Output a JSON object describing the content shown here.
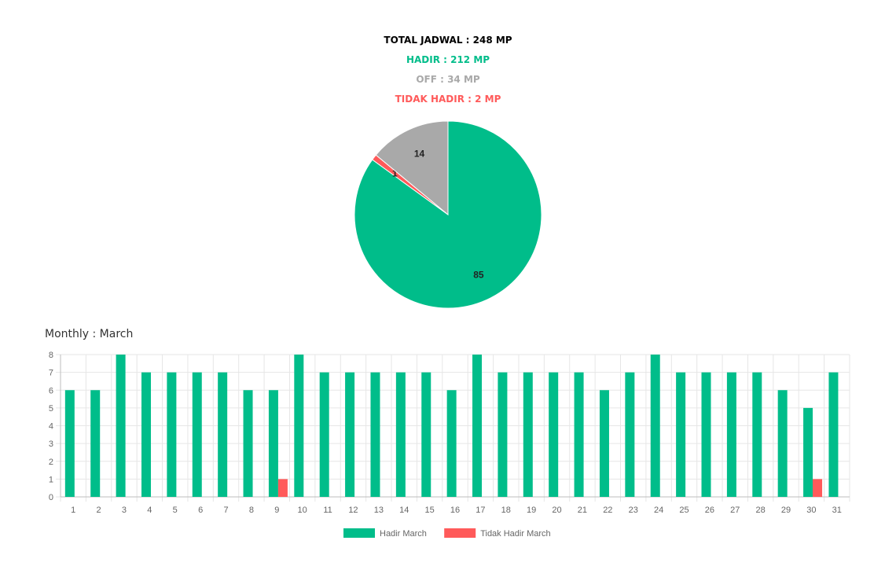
{
  "summary": {
    "total": "TOTAL JADWAL : 248 MP",
    "hadir": "HADIR : 212 MP",
    "off": "OFF : 34 MP",
    "tidak_hadir": "TIDAK HADIR : 2 MP"
  },
  "colors": {
    "hadir": "#00BD8A",
    "off": "#A9A9A9",
    "tidak_hadir": "#FF5A5A",
    "total": "#000000"
  },
  "chart_data": [
    {
      "type": "pie",
      "slices": [
        {
          "name": "Hadir",
          "value": 85,
          "color": "#00BD8A"
        },
        {
          "name": "Tidak Hadir",
          "value": 1,
          "color": "#FF5A5A"
        },
        {
          "name": "Off",
          "value": 14,
          "color": "#A9A9A9"
        }
      ],
      "data_labels": [
        "85",
        "1",
        "14"
      ]
    },
    {
      "type": "bar",
      "title": "Monthly : March",
      "categories": [
        "1",
        "2",
        "3",
        "4",
        "5",
        "6",
        "7",
        "8",
        "9",
        "10",
        "11",
        "12",
        "13",
        "14",
        "15",
        "16",
        "17",
        "18",
        "19",
        "20",
        "21",
        "22",
        "23",
        "24",
        "25",
        "26",
        "27",
        "28",
        "29",
        "30",
        "31"
      ],
      "series": [
        {
          "name": "Hadir March",
          "color": "#00BD8A",
          "values": [
            6,
            6,
            8,
            7,
            7,
            7,
            7,
            6,
            6,
            8,
            7,
            7,
            7,
            7,
            7,
            6,
            8,
            7,
            7,
            7,
            7,
            6,
            7,
            8,
            7,
            7,
            7,
            7,
            6,
            5,
            7
          ]
        },
        {
          "name": "Tidak Hadir March",
          "color": "#FF5A5A",
          "values": [
            0,
            0,
            0,
            0,
            0,
            0,
            0,
            0,
            1,
            0,
            0,
            0,
            0,
            0,
            0,
            0,
            0,
            0,
            0,
            0,
            0,
            0,
            0,
            0,
            0,
            0,
            0,
            0,
            0,
            1,
            0
          ]
        }
      ],
      "ylim": [
        0,
        8
      ],
      "yticks": [
        "0",
        "1",
        "2",
        "3",
        "4",
        "5",
        "6",
        "7",
        "8"
      ],
      "grid": true,
      "legend": "bottom"
    }
  ]
}
